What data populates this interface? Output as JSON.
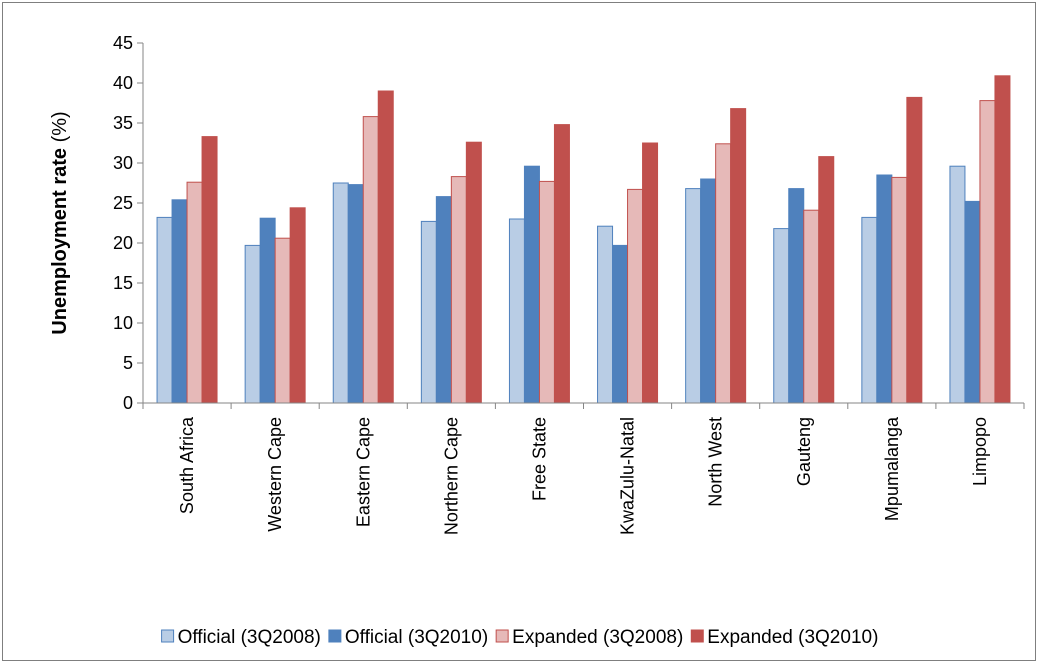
{
  "chart_data": {
    "type": "bar",
    "title": "",
    "xlabel": "",
    "ylabel_bold": "Unemployment rate",
    "ylabel_unit": " (%)",
    "ylim": [
      0,
      45
    ],
    "yticks": [
      "0",
      "5",
      "10",
      "15",
      "20",
      "25",
      "30",
      "35",
      "40",
      "45"
    ],
    "ytick_values": [
      0,
      5,
      10,
      15,
      20,
      25,
      30,
      35,
      40,
      45
    ],
    "grid": false,
    "legend_position": "bottom",
    "categories": [
      "South Africa",
      "Western Cape",
      "Eastern Cape",
      "Northern Cape",
      "Free State",
      "KwaZulu-Natal",
      "North West",
      "Gauteng",
      "Mpumalanga",
      "Limpopo"
    ],
    "series": [
      {
        "name": "Official (3Q2008)",
        "fill": "#b9cde5",
        "stroke": "#4f81bd",
        "values": [
          23.2,
          19.7,
          27.5,
          22.7,
          23.0,
          22.1,
          26.8,
          21.8,
          23.2,
          29.6
        ]
      },
      {
        "name": "Official (3Q2010)",
        "fill": "#4f81bd",
        "stroke": "#4f81bd",
        "values": [
          25.4,
          23.1,
          27.3,
          25.8,
          29.6,
          19.7,
          28.0,
          26.8,
          28.5,
          25.2
        ]
      },
      {
        "name": "Expanded (3Q2008)",
        "fill": "#e6b9b8",
        "stroke": "#c0504d",
        "values": [
          27.6,
          20.6,
          35.8,
          28.3,
          27.7,
          26.7,
          32.4,
          24.1,
          28.2,
          37.8
        ]
      },
      {
        "name": "Expanded (3Q2010)",
        "fill": "#c0504d",
        "stroke": "#c0504d",
        "values": [
          33.3,
          24.4,
          39.0,
          32.6,
          34.8,
          32.5,
          36.8,
          30.8,
          38.2,
          40.9
        ]
      }
    ]
  }
}
